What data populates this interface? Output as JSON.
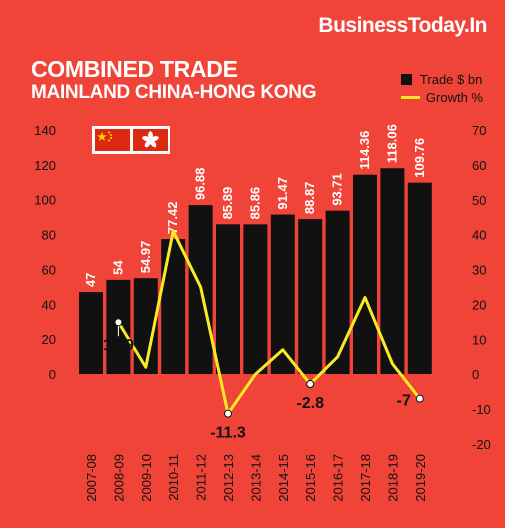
{
  "brand": "BusinessToday.In",
  "title_line1": "COMBINED TRADE",
  "title_line2": "MAINLAND CHINA-HONG KONG",
  "legend": {
    "bar_label": "Trade $ bn",
    "line_label": "Growth %"
  },
  "flags": [
    {
      "name": "china-flag-icon"
    },
    {
      "name": "hong-kong-flag-icon"
    }
  ],
  "colors": {
    "background": "#f04438",
    "bar": "#111111",
    "line": "#f7ec23",
    "text_dark": "#111111",
    "text_light": "#ffffff"
  },
  "chart_data": {
    "type": "bar",
    "categories": [
      "2007-08",
      "2008-09",
      "2009-10",
      "2010-11",
      "2011-12",
      "2012-13",
      "2013-14",
      "2014-15",
      "2015-16",
      "2016-17",
      "2017-18",
      "2018-19",
      "2019-20"
    ],
    "series": [
      {
        "name": "Trade $ bn",
        "type": "bar",
        "axis": "left",
        "values": [
          47,
          54,
          54.97,
          77.42,
          96.88,
          85.89,
          85.86,
          91.47,
          88.87,
          93.71,
          114.36,
          118.06,
          109.76
        ],
        "labels": [
          "47",
          "54",
          "54.97",
          "77.42",
          "96.88",
          "85.89",
          "85.86",
          "91.47",
          "88.87",
          "93.71",
          "114.36",
          "118.06",
          "109.76"
        ]
      },
      {
        "name": "Growth %",
        "type": "line",
        "axis": "right",
        "values": [
          null,
          14.9,
          2,
          41,
          25,
          -11.3,
          0,
          7,
          -2.8,
          5,
          22,
          3,
          -7
        ]
      }
    ],
    "line_annotations": [
      {
        "category": "2008-09",
        "label": "14.9"
      },
      {
        "category": "2012-13",
        "label": "-11.3"
      },
      {
        "category": "2015-16",
        "label": "-2.8"
      },
      {
        "category": "2019-20",
        "label": "-7"
      }
    ],
    "y_left": {
      "ylim": [
        0,
        140
      ],
      "ticks": [
        "0",
        "20",
        "40",
        "60",
        "80",
        "100",
        "120",
        "140"
      ]
    },
    "y_right": {
      "ylim": [
        -20,
        70
      ],
      "ticks": [
        "-20",
        "-10",
        "0",
        "10",
        "20",
        "30",
        "40",
        "50",
        "60",
        "70"
      ]
    },
    "xlabel": "",
    "ylabel": "",
    "grid": false,
    "legend_position": "top-right"
  }
}
